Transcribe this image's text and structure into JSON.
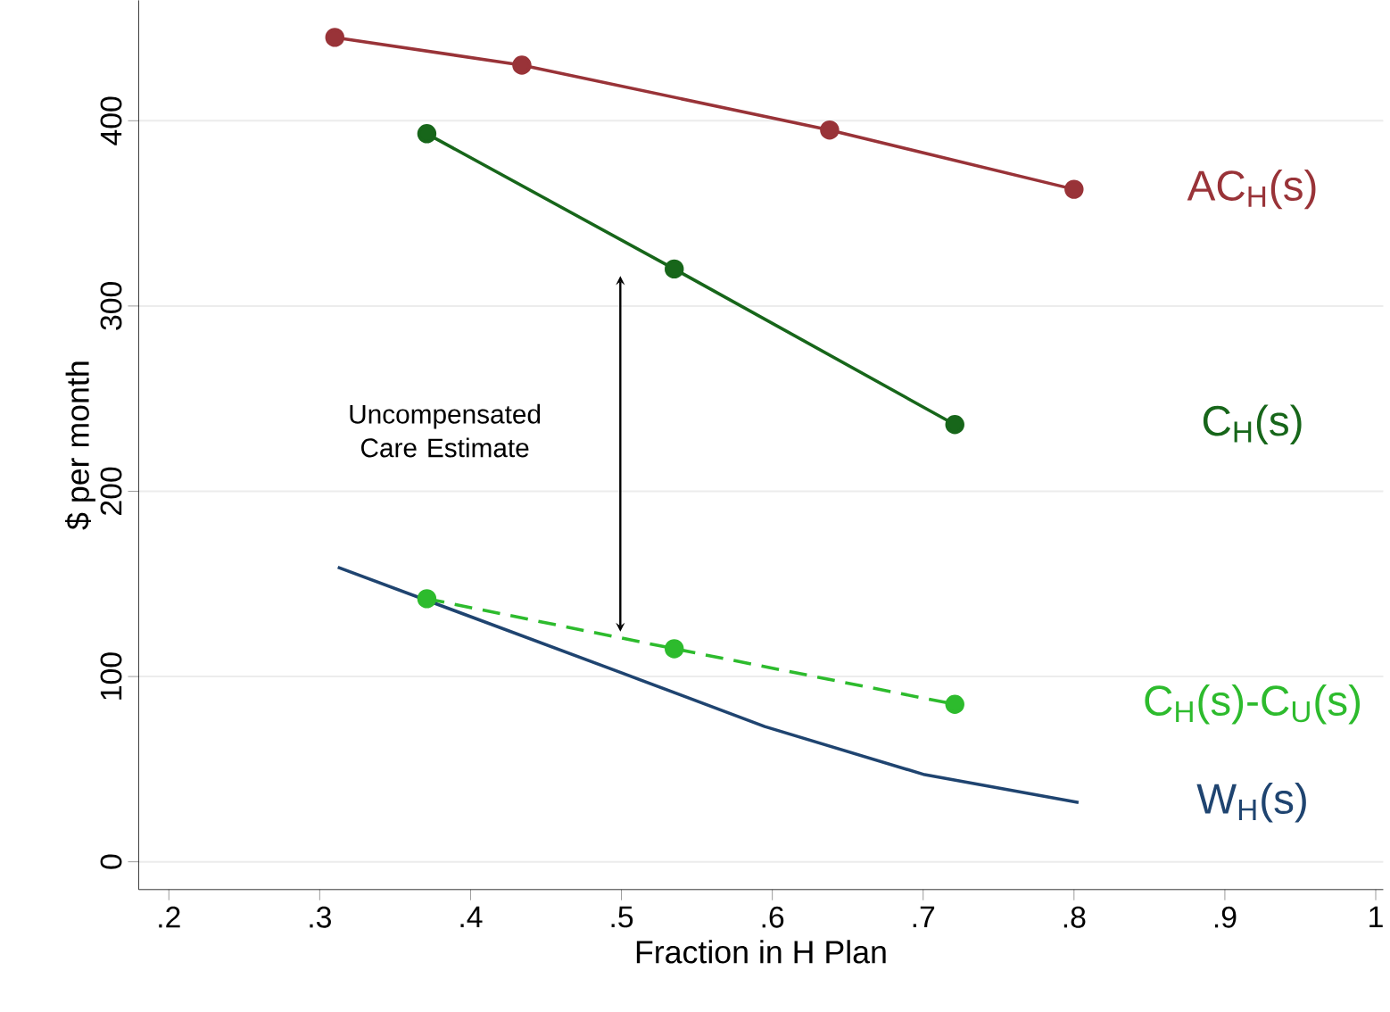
{
  "chart_data": {
    "type": "line",
    "xlabel": "Fraction in H Plan",
    "ylabel": "$ per month",
    "xlim": [
      0.18,
      1.005
    ],
    "ylim": [
      -15,
      465
    ],
    "xticks": [
      {
        "value": 0.2,
        "label": ".2"
      },
      {
        "value": 0.3,
        "label": ".3"
      },
      {
        "value": 0.4,
        "label": ".4"
      },
      {
        "value": 0.5,
        "label": ".5"
      },
      {
        "value": 0.6,
        "label": ".6"
      },
      {
        "value": 0.7,
        "label": ".7"
      },
      {
        "value": 0.8,
        "label": ".8"
      },
      {
        "value": 0.9,
        "label": ".9"
      },
      1
    ],
    "yticks": [
      0,
      100,
      200,
      300,
      400
    ],
    "grid": "y",
    "series": [
      {
        "name": "AC$_{H}$(s)",
        "color": "#993338",
        "marker": "circle",
        "line_style": "solid",
        "x": [
          0.31,
          0.434,
          0.638,
          0.8
        ],
        "values": [
          445,
          430,
          395,
          363
        ]
      },
      {
        "name": "C$_{H}$(s)",
        "color": "#17661a",
        "marker": "circle",
        "line_style": "solid",
        "x": [
          0.371,
          0.535,
          0.721
        ],
        "values": [
          393,
          320,
          236
        ]
      },
      {
        "name": "C$_{H}$(s)-C$_{U}$(s)",
        "color": "#2dbb2d",
        "marker": "circle",
        "line_style": "dashed",
        "x": [
          0.371,
          0.535,
          0.721
        ],
        "values": [
          142,
          115,
          85
        ]
      },
      {
        "name": "W$_{H}$(s)",
        "color": "#1f4470",
        "marker": "none",
        "line_style": "solid",
        "x": [
          0.312,
          0.5,
          0.595,
          0.701,
          0.803
        ],
        "values": [
          159,
          102,
          73,
          47,
          32
        ]
      }
    ],
    "annotations": [
      "Uncompensated Care Estimate"
    ]
  }
}
